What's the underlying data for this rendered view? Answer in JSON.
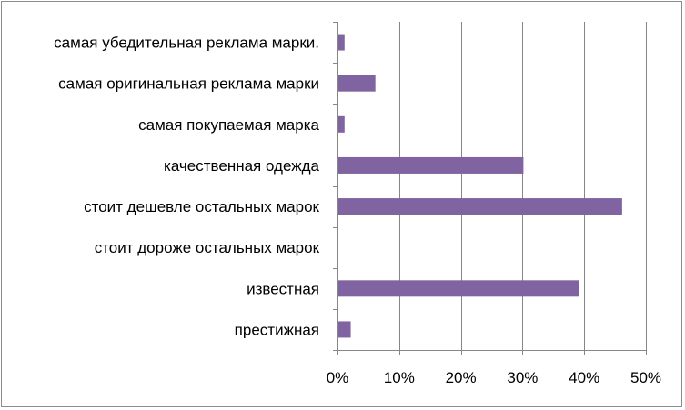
{
  "chart_data": {
    "type": "bar",
    "orientation": "horizontal",
    "categories": [
      "самая убедительная реклама марки.",
      "самая оригинальная реклама марки",
      "самая покупаемая марка",
      "качественная одежда",
      "стоит дешевле остальных марок",
      "стоит дороже остальных марок",
      "известная",
      "престижная"
    ],
    "values": [
      1,
      6,
      1,
      30,
      46,
      0,
      39,
      2
    ],
    "xlim": [
      0,
      50
    ],
    "xticks": [
      0,
      10,
      20,
      30,
      40,
      50
    ],
    "xtick_labels": [
      "0%",
      "10%",
      "20%",
      "30%",
      "40%",
      "50%"
    ],
    "grid": true,
    "legend": "none",
    "bar_color": "#8064a2",
    "grid_color": "#868686",
    "title": "",
    "xlabel": "",
    "ylabel": ""
  }
}
